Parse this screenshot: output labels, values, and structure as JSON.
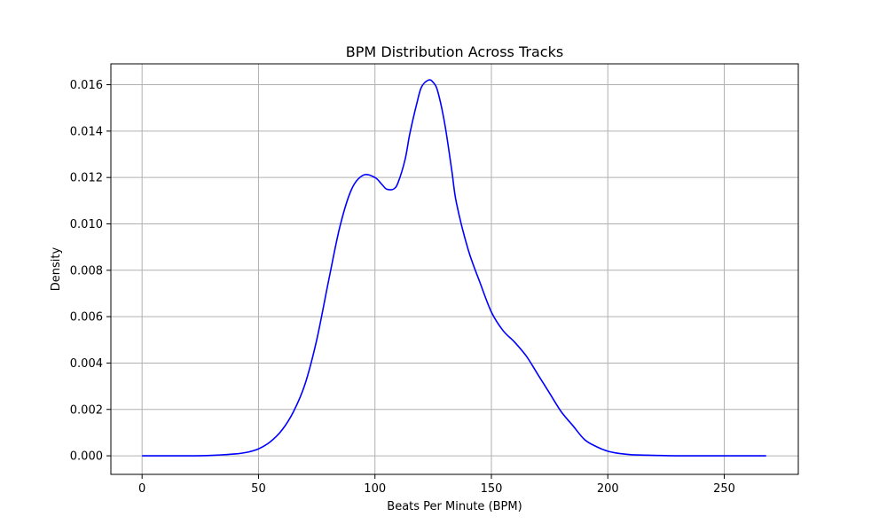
{
  "chart_data": {
    "type": "line",
    "title": "BPM Distribution Across Tracks",
    "xlabel": "Beats Per Minute (BPM)",
    "ylabel": "Density",
    "xlim": [
      -13.4,
      281.8
    ],
    "ylim": [
      -0.0008,
      0.0169
    ],
    "grid": true,
    "xticks": [
      0,
      50,
      100,
      150,
      200,
      250
    ],
    "xtick_labels": [
      "0",
      "50",
      "100",
      "150",
      "200",
      "250"
    ],
    "yticks": [
      0.0,
      0.002,
      0.004,
      0.006,
      0.008,
      0.01,
      0.012,
      0.014,
      0.016
    ],
    "ytick_labels": [
      "0.000",
      "0.002",
      "0.004",
      "0.006",
      "0.008",
      "0.010",
      "0.012",
      "0.014",
      "0.016"
    ],
    "series": [
      {
        "color": "#0000ff",
        "x": [
          0,
          20,
          30,
          40,
          45,
          50,
          55,
          60,
          65,
          70,
          75,
          80,
          85,
          90,
          95,
          100,
          103,
          105,
          108,
          110,
          113,
          115,
          118,
          120,
          123,
          125,
          127,
          130,
          133,
          135,
          140,
          145,
          150,
          155,
          160,
          165,
          170,
          175,
          180,
          185,
          190,
          195,
          200,
          205,
          210,
          220,
          230,
          250,
          268
        ],
        "y": [
          0.0,
          0.0,
          2e-05,
          8e-05,
          0.00015,
          0.0003,
          0.0006,
          0.0011,
          0.0019,
          0.0031,
          0.005,
          0.0075,
          0.0099,
          0.0115,
          0.0121,
          0.012,
          0.0117,
          0.0115,
          0.0115,
          0.0118,
          0.0128,
          0.0139,
          0.0152,
          0.0159,
          0.0162,
          0.0161,
          0.0157,
          0.0143,
          0.0123,
          0.0109,
          0.0089,
          0.0075,
          0.0062,
          0.0054,
          0.0049,
          0.0043,
          0.0035,
          0.0027,
          0.0019,
          0.0013,
          0.0007,
          0.0004,
          0.0002,
          0.0001,
          5e-05,
          2e-05,
          0.0,
          0.0,
          0.0
        ]
      }
    ]
  }
}
